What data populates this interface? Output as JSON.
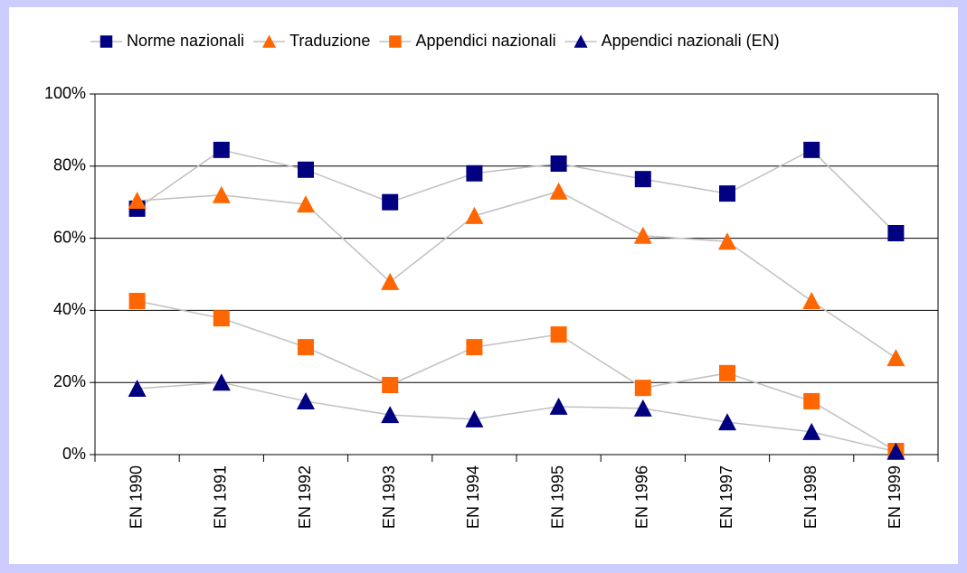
{
  "chart_data": {
    "type": "line",
    "categories": [
      "EN 1990",
      "EN 1991",
      "EN 1992",
      "EN 1993",
      "EN 1994",
      "EN 1995",
      "EN 1996",
      "EN 1997",
      "EN 1998",
      "EN 1999"
    ],
    "series": [
      {
        "name": "Norme nazionali",
        "color": "#000080",
        "marker": "square",
        "values": [
          68.2,
          84.5,
          79,
          70,
          78,
          80.7,
          76.4,
          72.4,
          84.5,
          61.4
        ]
      },
      {
        "name": "Traduzione",
        "color": "#ff6600",
        "marker": "triangle",
        "values": [
          70.4,
          72,
          69.4,
          47.9,
          66.2,
          73,
          60.7,
          59.1,
          42.6,
          26.8
        ]
      },
      {
        "name": "Appendici nazionali",
        "color": "#ff6600",
        "marker": "square",
        "values": [
          42.6,
          37.8,
          29.8,
          19.3,
          29.8,
          33.3,
          18.5,
          22.6,
          14.8,
          1
        ]
      },
      {
        "name": "Appendici nazionali (EN)",
        "color": "#000080",
        "marker": "triangle",
        "values": [
          18.3,
          20,
          14.8,
          11,
          9.8,
          13.3,
          12.8,
          9,
          6.3,
          0.8
        ]
      }
    ],
    "line_color": "#c0c0c0",
    "ylim": [
      0,
      100
    ],
    "yticks": [
      {
        "value": 0,
        "label": "0%"
      },
      {
        "value": 20,
        "label": "20%"
      },
      {
        "value": 40,
        "label": "40%"
      },
      {
        "value": 60,
        "label": "60%"
      },
      {
        "value": 80,
        "label": "80%"
      },
      {
        "value": 100,
        "label": "100%"
      }
    ],
    "grid": true,
    "legend": "top"
  }
}
